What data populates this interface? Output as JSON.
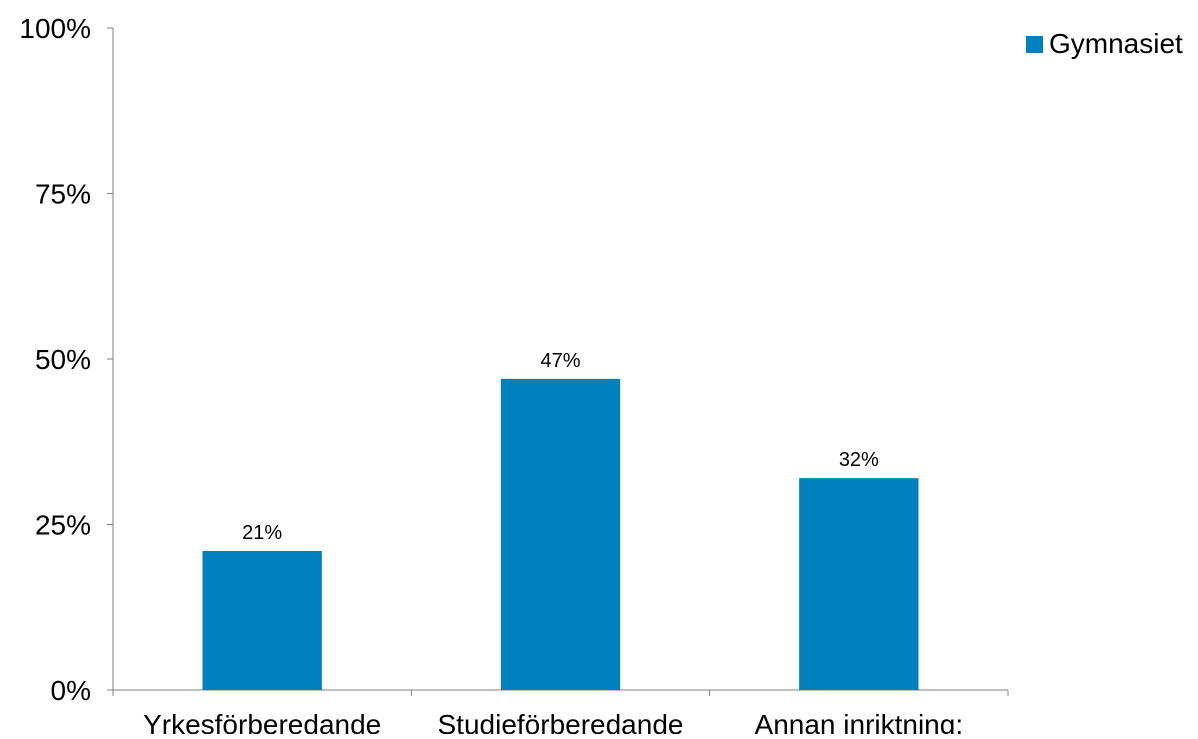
{
  "chart_data": {
    "type": "bar",
    "categories": [
      "Yrkesförberedande",
      "Studieförberedande",
      "Annan inriktning:"
    ],
    "series": [
      {
        "name": "Gymnasiet",
        "values": [
          21,
          47,
          32
        ],
        "color": "#0080BC"
      }
    ],
    "data_labels": [
      "21%",
      "47%",
      "32%"
    ],
    "y_ticks": [
      "0%",
      "25%",
      "50%",
      "75%",
      "100%"
    ],
    "ylim": [
      0,
      100
    ],
    "grid": false,
    "legend_position": "top-right"
  }
}
